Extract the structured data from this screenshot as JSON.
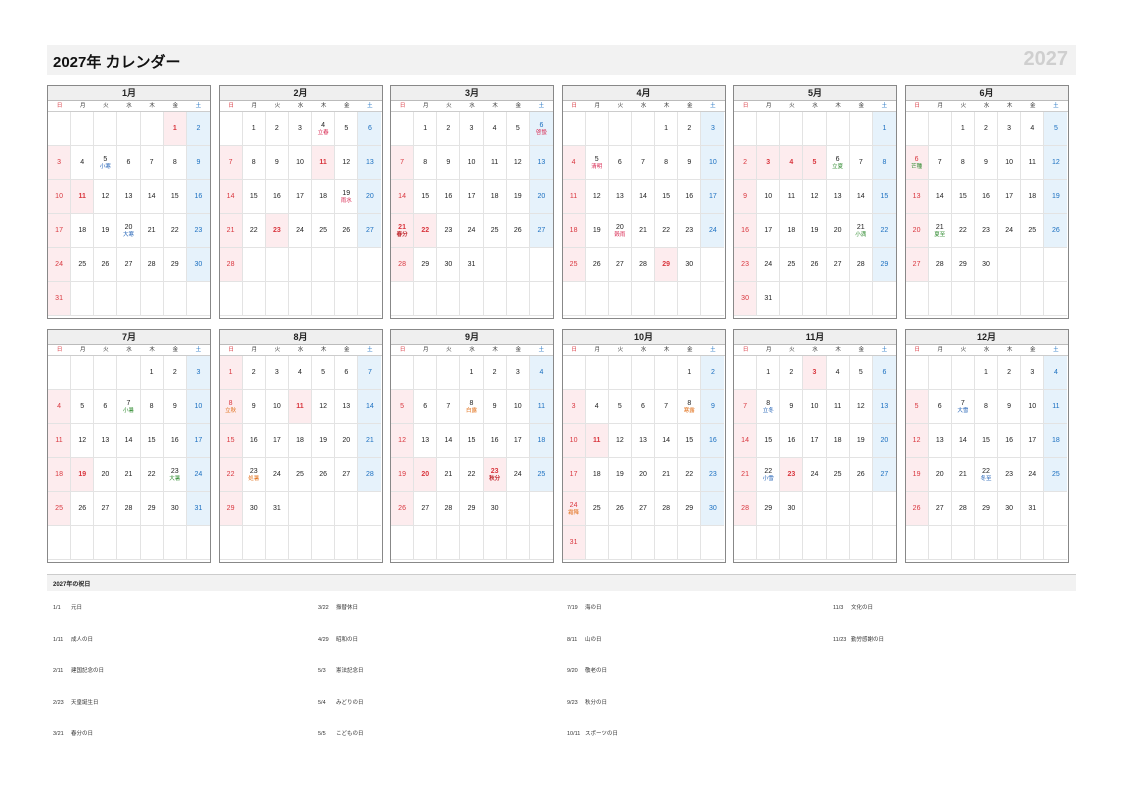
{
  "header": {
    "title": "2027年 カレンダー",
    "year": "2027"
  },
  "weekdays": [
    "日",
    "月",
    "火",
    "水",
    "木",
    "金",
    "土"
  ],
  "months": [
    {
      "name": "1月",
      "start": 5,
      "days": 31,
      "holidays": [
        1,
        11
      ],
      "terms": [
        {
          "d": 5,
          "t": "小寒",
          "c": "blue"
        },
        {
          "d": 20,
          "t": "大寒",
          "c": "blue"
        }
      ]
    },
    {
      "name": "2月",
      "start": 1,
      "days": 28,
      "holidays": [
        11,
        23
      ],
      "terms": [
        {
          "d": 4,
          "t": "立春",
          "c": "red"
        },
        {
          "d": 19,
          "t": "雨水",
          "c": "red"
        }
      ]
    },
    {
      "name": "3月",
      "start": 1,
      "days": 31,
      "holidays": [
        21,
        22
      ],
      "terms": [
        {
          "d": 6,
          "t": "啓蟄",
          "c": "red"
        },
        {
          "d": 21,
          "t": "春分",
          "c": "holiday"
        }
      ]
    },
    {
      "name": "4月",
      "start": 4,
      "days": 30,
      "holidays": [
        29
      ],
      "terms": [
        {
          "d": 5,
          "t": "清明",
          "c": "red"
        },
        {
          "d": 20,
          "t": "穀雨",
          "c": "red"
        }
      ]
    },
    {
      "name": "5月",
      "start": 6,
      "days": 31,
      "holidays": [
        3,
        4,
        5
      ],
      "terms": [
        {
          "d": 6,
          "t": "立夏",
          "c": "green"
        },
        {
          "d": 21,
          "t": "小満",
          "c": "green"
        }
      ]
    },
    {
      "name": "6月",
      "start": 2,
      "days": 30,
      "holidays": [],
      "terms": [
        {
          "d": 6,
          "t": "芒種",
          "c": "green"
        },
        {
          "d": 21,
          "t": "夏至",
          "c": "green"
        }
      ]
    },
    {
      "name": "7月",
      "start": 4,
      "days": 31,
      "holidays": [
        19
      ],
      "terms": [
        {
          "d": 7,
          "t": "小暑",
          "c": "green"
        },
        {
          "d": 23,
          "t": "大暑",
          "c": "green"
        }
      ]
    },
    {
      "name": "8月",
      "start": 0,
      "days": 31,
      "holidays": [
        11
      ],
      "terms": [
        {
          "d": 8,
          "t": "立秋",
          "c": "orange"
        },
        {
          "d": 23,
          "t": "処暑",
          "c": "orange"
        }
      ]
    },
    {
      "name": "9月",
      "start": 3,
      "days": 30,
      "holidays": [
        20,
        23
      ],
      "terms": [
        {
          "d": 8,
          "t": "白露",
          "c": "orange"
        },
        {
          "d": 23,
          "t": "秋分",
          "c": "holiday"
        }
      ]
    },
    {
      "name": "10月",
      "start": 5,
      "days": 31,
      "holidays": [
        11
      ],
      "terms": [
        {
          "d": 8,
          "t": "寒露",
          "c": "orange"
        },
        {
          "d": 24,
          "t": "霜降",
          "c": "orange"
        }
      ]
    },
    {
      "name": "11月",
      "start": 1,
      "days": 30,
      "holidays": [
        3,
        23
      ],
      "terms": [
        {
          "d": 8,
          "t": "立冬",
          "c": "blue"
        },
        {
          "d": 22,
          "t": "小雪",
          "c": "blue"
        }
      ]
    },
    {
      "name": "12月",
      "start": 3,
      "days": 31,
      "holidays": [],
      "terms": [
        {
          "d": 7,
          "t": "大雪",
          "c": "blue"
        },
        {
          "d": 22,
          "t": "冬至",
          "c": "blue"
        }
      ]
    }
  ],
  "holiday_section": {
    "title": "2027年の祝日",
    "items": [
      {
        "date": "1/1",
        "name": "元日"
      },
      {
        "date": "1/11",
        "name": "成人の日"
      },
      {
        "date": "2/11",
        "name": "建国記念の日"
      },
      {
        "date": "2/23",
        "name": "天皇誕生日"
      },
      {
        "date": "3/21",
        "name": "春分の日"
      },
      {
        "date": "3/22",
        "name": "振替休日"
      },
      {
        "date": "4/29",
        "name": "昭和の日"
      },
      {
        "date": "5/3",
        "name": "憲法記念日"
      },
      {
        "date": "5/4",
        "name": "みどりの日"
      },
      {
        "date": "5/5",
        "name": "こどもの日"
      },
      {
        "date": "7/19",
        "name": "海の日"
      },
      {
        "date": "8/11",
        "name": "山の日"
      },
      {
        "date": "9/20",
        "name": "敬老の日"
      },
      {
        "date": "9/23",
        "name": "秋分の日"
      },
      {
        "date": "10/11",
        "name": "スポーツの日"
      },
      {
        "date": "11/3",
        "name": "文化の日"
      },
      {
        "date": "11/23",
        "name": "勤労感謝の日"
      }
    ]
  }
}
